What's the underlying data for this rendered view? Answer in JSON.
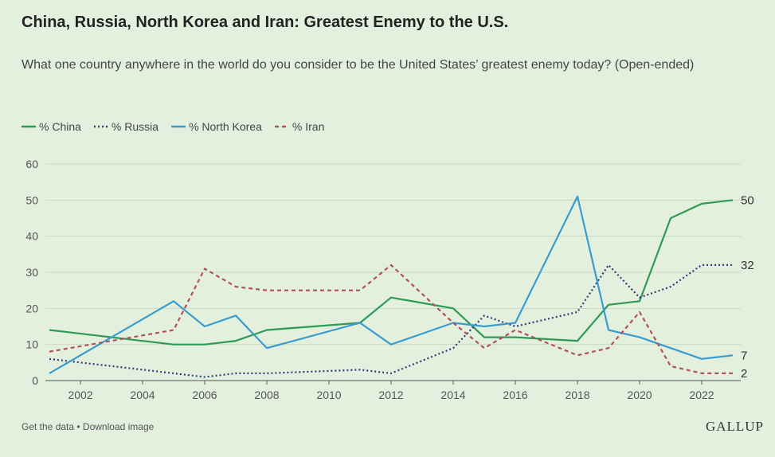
{
  "title": "China, Russia, North Korea and Iran: Greatest Enemy to the U.S.",
  "subtitle": "What one country anywhere in the world do you consider to be the United States’ greatest enemy today? (Open-ended)",
  "footer": {
    "get_data": "Get the data",
    "separator": " • ",
    "download": "Download image"
  },
  "logo": "GALLUP",
  "chart_data": {
    "type": "line",
    "xlim": [
      2001,
      2023
    ],
    "ylim": [
      0,
      60
    ],
    "yticks": [
      0,
      10,
      20,
      30,
      40,
      50,
      60
    ],
    "xticks": [
      2002,
      2004,
      2006,
      2008,
      2010,
      2012,
      2014,
      2016,
      2018,
      2020,
      2022
    ],
    "grid": true,
    "legend_position": "top-left",
    "series": [
      {
        "name": "% China",
        "color": "#2e9a56",
        "dash": "solid",
        "points": [
          [
            2001,
            14
          ],
          [
            2005,
            10
          ],
          [
            2006,
            10
          ],
          [
            2007,
            11
          ],
          [
            2008,
            14
          ],
          [
            2011,
            16
          ],
          [
            2012,
            23
          ],
          [
            2014,
            20
          ],
          [
            2015,
            12
          ],
          [
            2016,
            12
          ],
          [
            2018,
            11
          ],
          [
            2019,
            21
          ],
          [
            2020,
            22
          ],
          [
            2021,
            45
          ],
          [
            2022,
            49
          ],
          [
            2023,
            50
          ]
        ],
        "end_label": "50"
      },
      {
        "name": "% Russia",
        "color": "#2b3f78",
        "dash": "dotted",
        "points": [
          [
            2001,
            6
          ],
          [
            2005,
            2
          ],
          [
            2006,
            1
          ],
          [
            2007,
            2
          ],
          [
            2008,
            2
          ],
          [
            2011,
            3
          ],
          [
            2012,
            2
          ],
          [
            2014,
            9
          ],
          [
            2015,
            18
          ],
          [
            2016,
            15
          ],
          [
            2018,
            19
          ],
          [
            2019,
            32
          ],
          [
            2020,
            23
          ],
          [
            2021,
            26
          ],
          [
            2022,
            32
          ],
          [
            2023,
            32
          ]
        ],
        "end_label": "32"
      },
      {
        "name": "% North Korea",
        "color": "#3a9bcf",
        "dash": "solid",
        "points": [
          [
            2001,
            2
          ],
          [
            2005,
            22
          ],
          [
            2006,
            15
          ],
          [
            2007,
            18
          ],
          [
            2008,
            9
          ],
          [
            2011,
            16
          ],
          [
            2012,
            10
          ],
          [
            2014,
            16
          ],
          [
            2015,
            15
          ],
          [
            2016,
            16
          ],
          [
            2018,
            51
          ],
          [
            2019,
            14
          ],
          [
            2020,
            12
          ],
          [
            2021,
            9
          ],
          [
            2022,
            6
          ],
          [
            2023,
            7
          ]
        ],
        "end_label": "7"
      },
      {
        "name": "% Iran",
        "color": "#b0525e",
        "dash": "dashed",
        "points": [
          [
            2001,
            8
          ],
          [
            2005,
            14
          ],
          [
            2006,
            31
          ],
          [
            2007,
            26
          ],
          [
            2008,
            25
          ],
          [
            2011,
            25
          ],
          [
            2012,
            32
          ],
          [
            2014,
            16
          ],
          [
            2015,
            9
          ],
          [
            2016,
            14
          ],
          [
            2018,
            7
          ],
          [
            2019,
            9
          ],
          [
            2020,
            19
          ],
          [
            2021,
            4
          ],
          [
            2022,
            2
          ],
          [
            2023,
            2
          ]
        ],
        "end_label": "2"
      }
    ]
  }
}
